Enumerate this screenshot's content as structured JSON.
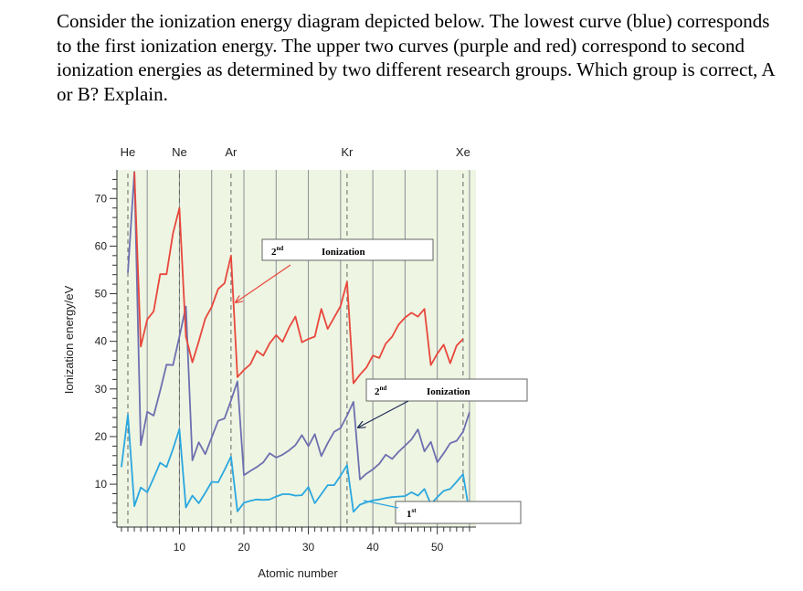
{
  "question": {
    "text": "Consider the ionization energy diagram depicted below. The lowest curve (blue) corresponds to the first ionization energy. The upper two curves (purple and red) correspond to second ionization energies as determined by two different research groups. Which group is correct, A or B? Explain."
  },
  "chart_data": {
    "type": "line",
    "xlabel": "Atomic number",
    "ylabel": "Ionization energy/eV",
    "xlim": [
      0.3,
      56
    ],
    "ylim": [
      1,
      76
    ],
    "xticks": [
      10,
      20,
      30,
      40,
      50
    ],
    "yticks": [
      10,
      20,
      30,
      40,
      50,
      60,
      70
    ],
    "grid": "vertical lines at every 5 atomic numbers",
    "background": "#eef5e2",
    "noble_gases": [
      {
        "label": "He",
        "z": 2
      },
      {
        "label": "Ne",
        "z": 10
      },
      {
        "label": "Ar",
        "z": 18
      },
      {
        "label": "Kr",
        "z": 36
      },
      {
        "label": "Xe",
        "z": 54
      }
    ],
    "series": [
      {
        "color": "#2aa7e0",
        "x": [
          1,
          2,
          3,
          4,
          5,
          6,
          7,
          8,
          9,
          10,
          11,
          12,
          13,
          14,
          15,
          16,
          17,
          18,
          19,
          20,
          21,
          22,
          23,
          24,
          25,
          26,
          27,
          28,
          29,
          30,
          31,
          32,
          33,
          34,
          35,
          36,
          37,
          38,
          39,
          40,
          41,
          42,
          43,
          44,
          45,
          46,
          47,
          48,
          49,
          50,
          51,
          52,
          53,
          54,
          55
        ],
        "values": [
          13.6,
          24.6,
          5.4,
          9.3,
          8.3,
          11.3,
          14.5,
          13.6,
          17.4,
          21.6,
          5.1,
          7.6,
          6.0,
          8.2,
          10.5,
          10.4,
          13.0,
          15.8,
          4.3,
          6.1,
          6.5,
          6.8,
          6.7,
          6.8,
          7.4,
          7.9,
          7.9,
          7.6,
          7.7,
          9.4,
          6.0,
          7.9,
          9.8,
          9.8,
          11.8,
          14.0,
          4.2,
          5.7,
          6.2,
          6.6,
          6.8,
          7.1,
          7.3,
          7.4,
          7.5,
          8.3,
          7.6,
          9.0,
          5.8,
          7.3,
          8.6,
          9.0,
          10.5,
          12.1,
          3.9
        ]
      },
      {
        "color": "#6e6fb0",
        "x": [
          2,
          3,
          4,
          5,
          6,
          7,
          8,
          9,
          10,
          11,
          12,
          13,
          14,
          15,
          16,
          17,
          18,
          19,
          20,
          21,
          22,
          23,
          24,
          25,
          26,
          27,
          28,
          29,
          30,
          31,
          32,
          33,
          34,
          35,
          36,
          37,
          38,
          39,
          40,
          41,
          42,
          43,
          44,
          45,
          46,
          47,
          48,
          49,
          50,
          51,
          52,
          53,
          54,
          55
        ],
        "values": [
          54.4,
          75.6,
          18.2,
          25.2,
          24.4,
          29.6,
          35.1,
          35.0,
          41.0,
          47.3,
          15.0,
          18.8,
          16.3,
          19.8,
          23.3,
          23.8,
          27.6,
          31.6,
          11.9,
          12.8,
          13.6,
          14.6,
          16.5,
          15.6,
          16.2,
          17.1,
          18.2,
          20.3,
          18.0,
          20.5,
          15.9,
          18.6,
          21.0,
          21.8,
          24.4,
          27.3,
          11.0,
          12.2,
          13.1,
          14.3,
          16.2,
          15.3,
          16.8,
          18.1,
          19.4,
          21.5,
          16.9,
          18.9,
          14.6,
          16.5,
          18.6,
          19.1,
          21.0,
          25.1
        ]
      },
      {
        "color": "#e8473c",
        "x": [
          3,
          4,
          5,
          6,
          7,
          8,
          9,
          10,
          11,
          12,
          13,
          14,
          15,
          16,
          17,
          18,
          19,
          20,
          21,
          22,
          23,
          24,
          25,
          26,
          27,
          28,
          29,
          30,
          31,
          32,
          33,
          34,
          35,
          36,
          37,
          38,
          39,
          40,
          41,
          42,
          43,
          44,
          45,
          46,
          47,
          48,
          49,
          50,
          51,
          52,
          53,
          54
        ],
        "values": [
          75.6,
          38.9,
          44.6,
          46.3,
          54.1,
          54.1,
          62.7,
          68.0,
          41.0,
          35.6,
          40.0,
          44.8,
          47.2,
          51.0,
          52.2,
          58.0,
          32.5,
          34.0,
          35.2,
          38.0,
          37.0,
          39.6,
          41.3,
          39.9,
          42.9,
          45.2,
          39.8,
          40.5,
          41.0,
          46.8,
          42.6,
          45.0,
          47.4,
          52.5,
          31.2,
          33.0,
          34.5,
          37.0,
          36.5,
          39.5,
          41.0,
          43.5,
          45.0,
          46.0,
          45.2,
          46.8,
          35.0,
          37.4,
          39.3,
          35.4,
          39.1,
          40.5
        ]
      }
    ],
    "annotations": [
      {
        "text_sup": "nd",
        "text_pre": "2",
        "text_main": "Ionization"
      },
      {
        "text_sup": "nd",
        "text_pre": "2",
        "text_main": "Ionization"
      },
      {
        "text_sup": "st",
        "text_pre": "1",
        "text_main": ""
      }
    ]
  }
}
